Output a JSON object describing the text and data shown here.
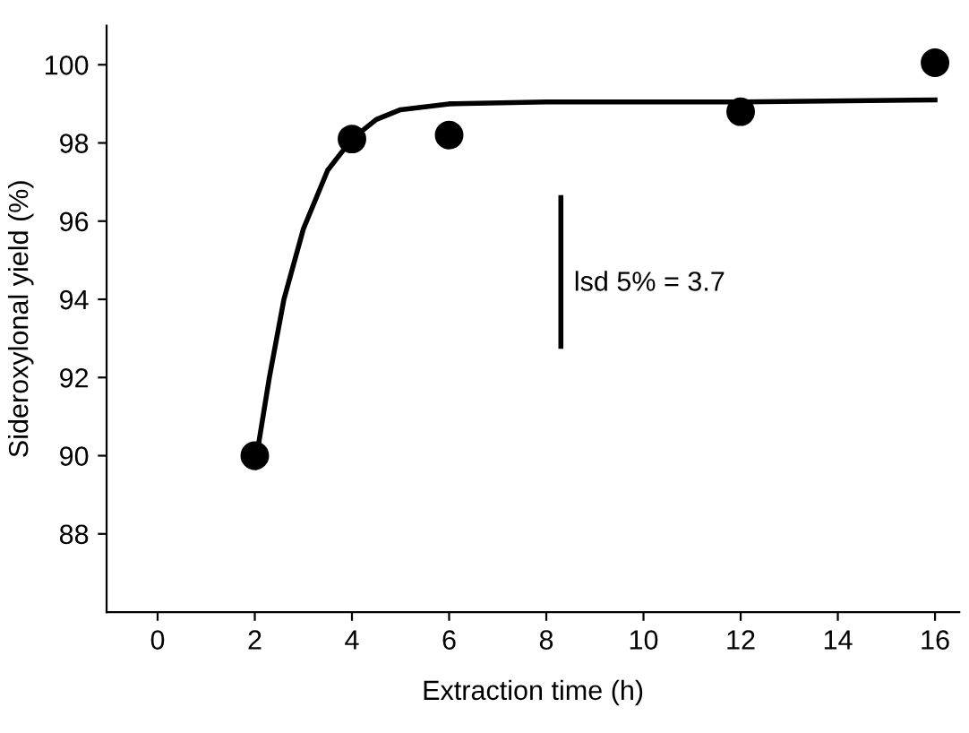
{
  "chart_data": {
    "type": "scatter",
    "xlabel": "Extraction time (h)",
    "ylabel": "Sideroxylonal yield (%)",
    "xlim": [
      -1.05,
      16.5
    ],
    "ylim": [
      86,
      101
    ],
    "xticks": [
      0,
      2,
      4,
      6,
      8,
      10,
      12,
      14,
      16
    ],
    "yticks": [
      88,
      90,
      92,
      94,
      96,
      98,
      100
    ],
    "grid": false,
    "series": [
      {
        "marker": "circle",
        "color": "#000000",
        "x": [
          2,
          4,
          6,
          12,
          16
        ],
        "values": [
          90,
          98.1,
          98.2,
          98.8,
          100.05
        ]
      },
      {
        "type": "line",
        "color": "#000000",
        "x": [
          2,
          2.3,
          2.6,
          3,
          3.5,
          4,
          4.5,
          5,
          6,
          8,
          12,
          16
        ],
        "values": [
          89.7,
          92,
          94,
          95.8,
          97.3,
          98.1,
          98.6,
          98.85,
          99,
          99.05,
          99.05,
          99.1
        ]
      },
      {
        "type": "line",
        "color": "#000000",
        "x": [
          8.3,
          8.3
        ],
        "values": [
          92.8,
          96.6
        ]
      }
    ],
    "annotations": [
      "lsd 5% = 3.7"
    ]
  }
}
